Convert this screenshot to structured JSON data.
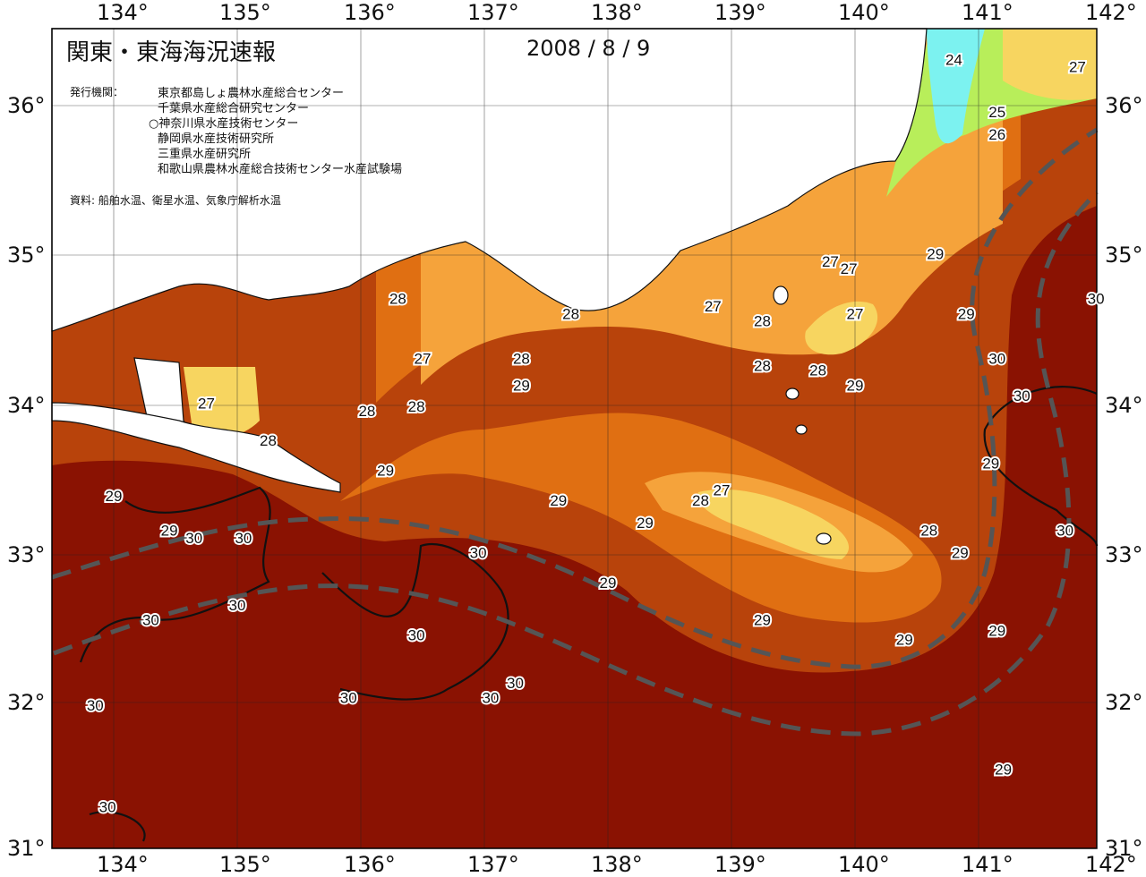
{
  "title": "関東・東海海況速報",
  "date": "2008 / 8 / 9",
  "publisher_label": "発行機関：",
  "publishers": [
    "東京都島しょ農林水産総合センター",
    "千葉県水産総合研究センター",
    "○神奈川県水産技術センター",
    "静岡県水産技術研究所",
    "三重県水産研究所",
    "和歌山県農林水産総合技術センター水産試験場"
  ],
  "source_note": "資料: 船舶水温、衛星水温、気象庁解析水温",
  "axes": {
    "longitudes": [
      "134°",
      "135°",
      "136°",
      "137°",
      "138°",
      "139°",
      "140°",
      "141°",
      "142°"
    ],
    "latitudes": [
      "36°",
      "35°",
      "34°",
      "33°",
      "32°",
      "31°"
    ]
  },
  "colors": {
    "temp_30": "#8a1202",
    "temp_29": "#b8430b",
    "temp_28": "#e06f12",
    "temp_27": "#f5a33b",
    "temp_26": "#f7d560",
    "temp_25": "#b8ee5a",
    "temp_24": "#7cf2f0",
    "land": "#ffffff",
    "kuroshio_axis": "#555555"
  },
  "contour_labels": [
    {
      "text": "24",
      "lon": 140.8,
      "lat": 36.3
    },
    {
      "text": "27",
      "lon": 141.8,
      "lat": 36.25
    },
    {
      "text": "25",
      "lon": 141.15,
      "lat": 35.95
    },
    {
      "text": "26",
      "lon": 141.15,
      "lat": 35.8
    },
    {
      "text": "28",
      "lon": 136.3,
      "lat": 34.7
    },
    {
      "text": "27",
      "lon": 136.5,
      "lat": 34.3
    },
    {
      "text": "28",
      "lon": 137.7,
      "lat": 34.6
    },
    {
      "text": "28",
      "lon": 137.3,
      "lat": 34.3
    },
    {
      "text": "27",
      "lon": 138.85,
      "lat": 34.65
    },
    {
      "text": "28",
      "lon": 139.25,
      "lat": 34.55
    },
    {
      "text": "27",
      "lon": 139.8,
      "lat": 34.95
    },
    {
      "text": "27",
      "lon": 139.95,
      "lat": 34.9
    },
    {
      "text": "27",
      "lon": 140.0,
      "lat": 34.6
    },
    {
      "text": "29",
      "lon": 140.65,
      "lat": 35.0
    },
    {
      "text": "29",
      "lon": 140.9,
      "lat": 34.6
    },
    {
      "text": "30",
      "lon": 141.15,
      "lat": 34.3
    },
    {
      "text": "30",
      "lon": 141.35,
      "lat": 34.05
    },
    {
      "text": "30",
      "lon": 141.95,
      "lat": 34.7
    },
    {
      "text": "27",
      "lon": 134.75,
      "lat": 34.0
    },
    {
      "text": "28",
      "lon": 135.25,
      "lat": 33.75
    },
    {
      "text": "28",
      "lon": 136.05,
      "lat": 33.95
    },
    {
      "text": "28",
      "lon": 136.45,
      "lat": 33.98
    },
    {
      "text": "29",
      "lon": 137.3,
      "lat": 34.12
    },
    {
      "text": "28",
      "lon": 139.25,
      "lat": 34.25
    },
    {
      "text": "28",
      "lon": 139.7,
      "lat": 34.22
    },
    {
      "text": "29",
      "lon": 140.0,
      "lat": 34.12
    },
    {
      "text": "29",
      "lon": 136.2,
      "lat": 33.55
    },
    {
      "text": "29",
      "lon": 134.0,
      "lat": 33.38
    },
    {
      "text": "29",
      "lon": 134.45,
      "lat": 33.15
    },
    {
      "text": "30",
      "lon": 134.65,
      "lat": 33.1
    },
    {
      "text": "30",
      "lon": 135.05,
      "lat": 33.1
    },
    {
      "text": "30",
      "lon": 136.95,
      "lat": 33.0
    },
    {
      "text": "29",
      "lon": 137.6,
      "lat": 33.35
    },
    {
      "text": "29",
      "lon": 138.3,
      "lat": 33.2
    },
    {
      "text": "28",
      "lon": 138.75,
      "lat": 33.35
    },
    {
      "text": "27",
      "lon": 138.92,
      "lat": 33.42
    },
    {
      "text": "28",
      "lon": 140.6,
      "lat": 33.15
    },
    {
      "text": "29",
      "lon": 140.85,
      "lat": 33.0
    },
    {
      "text": "29",
      "lon": 141.1,
      "lat": 33.6
    },
    {
      "text": "30",
      "lon": 141.7,
      "lat": 33.15
    },
    {
      "text": "29",
      "lon": 138.0,
      "lat": 32.8
    },
    {
      "text": "30",
      "lon": 134.3,
      "lat": 32.55
    },
    {
      "text": "30",
      "lon": 135.0,
      "lat": 32.65
    },
    {
      "text": "30",
      "lon": 136.45,
      "lat": 32.45
    },
    {
      "text": "29",
      "lon": 139.25,
      "lat": 32.55
    },
    {
      "text": "29",
      "lon": 140.4,
      "lat": 32.42
    },
    {
      "text": "29",
      "lon": 141.15,
      "lat": 32.48
    },
    {
      "text": "30",
      "lon": 133.85,
      "lat": 31.98
    },
    {
      "text": "30",
      "lon": 135.9,
      "lat": 32.03
    },
    {
      "text": "30",
      "lon": 137.05,
      "lat": 32.03
    },
    {
      "text": "30",
      "lon": 137.25,
      "lat": 32.13
    },
    {
      "text": "30",
      "lon": 133.95,
      "lat": 31.3
    },
    {
      "text": "29",
      "lon": 141.2,
      "lat": 31.55
    }
  ]
}
